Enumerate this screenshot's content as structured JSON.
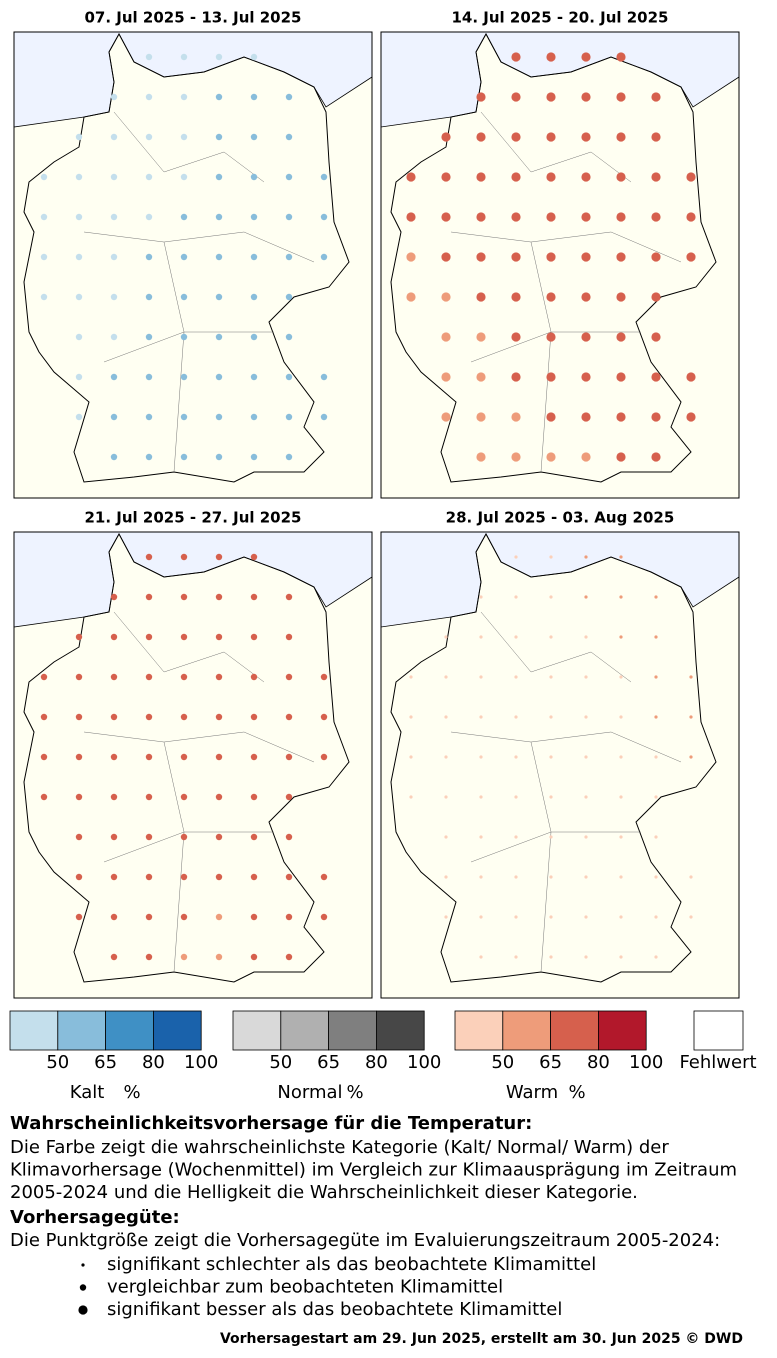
{
  "panels": [
    {
      "title": "07. Jul 2025 - 13. Jul 2025",
      "category": 0,
      "skill": 1,
      "grid": [
        [
          null,
          null,
          null,
          45,
          45,
          45,
          45,
          null,
          null
        ],
        [
          null,
          null,
          45,
          45,
          45,
          55,
          55,
          55,
          null
        ],
        [
          null,
          45,
          45,
          45,
          45,
          55,
          55,
          55,
          null
        ],
        [
          45,
          45,
          45,
          45,
          45,
          55,
          55,
          55,
          55
        ],
        [
          45,
          45,
          45,
          45,
          55,
          55,
          55,
          55,
          55
        ],
        [
          45,
          45,
          45,
          55,
          55,
          55,
          55,
          55,
          55
        ],
        [
          45,
          45,
          45,
          55,
          55,
          55,
          55,
          55,
          null
        ],
        [
          null,
          45,
          45,
          55,
          55,
          55,
          55,
          55,
          null
        ],
        [
          null,
          45,
          55,
          55,
          55,
          55,
          55,
          55,
          55
        ],
        [
          null,
          45,
          55,
          55,
          55,
          55,
          55,
          55,
          55
        ],
        [
          null,
          null,
          55,
          55,
          55,
          55,
          55,
          55,
          null
        ]
      ]
    },
    {
      "title": "14. Jul 2025 - 20. Jul 2025",
      "category": 2,
      "skill": 2,
      "grid": [
        [
          null,
          null,
          null,
          70,
          70,
          70,
          70,
          null,
          null
        ],
        [
          null,
          null,
          70,
          70,
          70,
          70,
          70,
          70,
          null
        ],
        [
          null,
          70,
          70,
          70,
          70,
          70,
          70,
          70,
          null
        ],
        [
          70,
          70,
          70,
          70,
          70,
          70,
          70,
          70,
          70
        ],
        [
          70,
          70,
          70,
          70,
          70,
          70,
          70,
          70,
          70
        ],
        [
          55,
          70,
          70,
          70,
          70,
          70,
          70,
          70,
          70
        ],
        [
          55,
          55,
          70,
          70,
          70,
          70,
          70,
          70,
          null
        ],
        [
          null,
          55,
          55,
          70,
          70,
          70,
          70,
          70,
          null
        ],
        [
          null,
          55,
          55,
          70,
          70,
          70,
          70,
          70,
          70
        ],
        [
          null,
          55,
          55,
          55,
          70,
          70,
          70,
          70,
          70
        ],
        [
          null,
          null,
          55,
          55,
          55,
          55,
          70,
          70,
          null
        ]
      ]
    },
    {
      "title": "21. Jul 2025 - 27. Jul 2025",
      "category": 2,
      "skill": 1,
      "grid": [
        [
          null,
          null,
          null,
          70,
          70,
          70,
          70,
          null,
          null
        ],
        [
          null,
          null,
          70,
          70,
          70,
          70,
          70,
          70,
          null
        ],
        [
          null,
          70,
          70,
          70,
          70,
          70,
          70,
          70,
          null
        ],
        [
          70,
          70,
          70,
          70,
          70,
          70,
          70,
          70,
          70
        ],
        [
          70,
          70,
          70,
          70,
          70,
          70,
          70,
          70,
          70
        ],
        [
          70,
          70,
          70,
          70,
          70,
          70,
          70,
          70,
          70
        ],
        [
          70,
          70,
          70,
          70,
          70,
          70,
          70,
          70,
          null
        ],
        [
          null,
          70,
          70,
          70,
          70,
          70,
          70,
          70,
          null
        ],
        [
          null,
          70,
          70,
          70,
          70,
          70,
          70,
          70,
          70
        ],
        [
          null,
          70,
          70,
          70,
          70,
          55,
          70,
          70,
          70
        ],
        [
          null,
          null,
          70,
          70,
          55,
          55,
          70,
          70,
          null
        ]
      ]
    },
    {
      "title": "28. Jul 2025 - 03. Aug 2025",
      "category": 2,
      "skill": 0,
      "grid": [
        [
          null,
          null,
          null,
          45,
          45,
          55,
          55,
          null,
          null
        ],
        [
          null,
          null,
          45,
          45,
          45,
          55,
          55,
          55,
          null
        ],
        [
          null,
          45,
          45,
          45,
          45,
          45,
          55,
          55,
          null
        ],
        [
          45,
          45,
          45,
          45,
          45,
          45,
          45,
          55,
          55
        ],
        [
          45,
          45,
          45,
          45,
          45,
          45,
          45,
          55,
          55
        ],
        [
          45,
          45,
          45,
          45,
          45,
          45,
          45,
          45,
          55
        ],
        [
          45,
          45,
          45,
          45,
          45,
          45,
          45,
          45,
          null
        ],
        [
          null,
          45,
          45,
          45,
          45,
          45,
          45,
          45,
          null
        ],
        [
          null,
          45,
          45,
          45,
          45,
          45,
          45,
          45,
          45
        ],
        [
          null,
          45,
          45,
          45,
          45,
          45,
          45,
          45,
          45
        ],
        [
          null,
          null,
          45,
          45,
          45,
          45,
          45,
          45,
          null
        ]
      ]
    }
  ],
  "legend": {
    "scales": [
      {
        "name": "Kalt",
        "unit": "%",
        "colors": [
          "#c4dfec",
          "#88bddb",
          "#3f90c5",
          "#1a62ab"
        ],
        "ticks": [
          50,
          65,
          80,
          100
        ]
      },
      {
        "name": "Normal",
        "unit": "%",
        "colors": [
          "#d9d9d9",
          "#b0b0b0",
          "#7f7f7f",
          "#474747"
        ],
        "ticks": [
          50,
          65,
          80,
          100
        ]
      },
      {
        "name": "Warm",
        "unit": "%",
        "colors": [
          "#fbd0ba",
          "#ee9c7a",
          "#d6604d",
          "#b2182b"
        ],
        "ticks": [
          50,
          65,
          80,
          100
        ]
      }
    ],
    "missing": "Fehlwert"
  },
  "description": {
    "heading": "Wahrscheinlichkeitsvorhersage für die Temperatur:",
    "lines": [
      "Die Farbe zeigt die wahrscheinlichste Kategorie (Kalt/ Normal/ Warm) der",
      "Klimavorhersage (Wochenmittel) im Vergleich zur Klimaausprägung im Zeitraum",
      "2005-2024 und die Helligkeit die Wahrscheinlichkeit dieser Kategorie."
    ]
  },
  "skill": {
    "heading": "Vorhersagegüte:",
    "intro": "Die Punktgröße zeigt die Vorhersagegüte im Evaluierungszeitraum 2005-2024:",
    "items": [
      "signifikant schlechter als das beobachtete Klimamittel",
      "vergleichbar zum beobachteten Klimamittel",
      "signifikant besser als das beobachtete Klimamittel"
    ]
  },
  "footer": "Vorhersagestart am 29. Jun 2025, erstellt am 30. Jun 2025 © DWD"
}
